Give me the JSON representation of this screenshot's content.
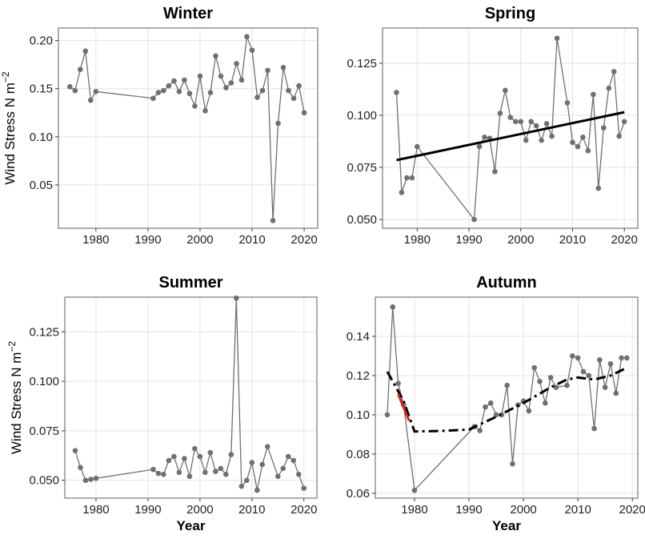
{
  "chart_data": [
    {
      "type": "line",
      "title": "Winter",
      "y_label": "Wind Stress N m",
      "y_label_sup": "−2",
      "xlim": [
        1972.8,
        2022.6
      ],
      "ylim": [
        0.005,
        0.213
      ],
      "xticks": [
        1980,
        1990,
        2000,
        2010,
        2020
      ],
      "yticks": [
        {
          "value": 0.05,
          "label": "0.05"
        },
        {
          "value": 0.1,
          "label": "0.10"
        },
        {
          "value": 0.15,
          "label": "0.15"
        },
        {
          "value": 0.2,
          "label": "0.20"
        }
      ],
      "grid": true,
      "series": [
        {
          "color": "#707070",
          "markers": true,
          "x": [
            1975,
            1976,
            1977,
            1978,
            1979,
            1980,
            1991,
            1992,
            1993,
            1994,
            1995,
            1996,
            1997,
            1998,
            1999,
            2000,
            2001,
            2002,
            2003,
            2004,
            2005,
            2006,
            2007,
            2008,
            2009,
            2010,
            2011,
            2012,
            2013,
            2014,
            2015,
            2016,
            2017,
            2018,
            2019,
            2020
          ],
          "values": [
            0.152,
            0.148,
            0.17,
            0.189,
            0.138,
            0.147,
            0.14,
            0.146,
            0.148,
            0.153,
            0.158,
            0.147,
            0.159,
            0.145,
            0.132,
            0.163,
            0.127,
            0.146,
            0.184,
            0.163,
            0.151,
            0.156,
            0.176,
            0.159,
            0.204,
            0.19,
            0.141,
            0.148,
            0.169,
            0.013,
            0.114,
            0.172,
            0.148,
            0.14,
            0.153,
            0.125
          ]
        }
      ]
    },
    {
      "type": "line",
      "title": "Spring",
      "xlim": [
        1973.3,
        2022.6
      ],
      "ylim": [
        0.0458,
        0.1419
      ],
      "xticks": [
        1980,
        1990,
        2000,
        2010,
        2020
      ],
      "yticks": [
        {
          "value": 0.05,
          "label": "0.050"
        },
        {
          "value": 0.075,
          "label": "0.075"
        },
        {
          "value": 0.1,
          "label": "0.100"
        },
        {
          "value": 0.125,
          "label": "0.125"
        }
      ],
      "grid": true,
      "series": [
        {
          "color": "#707070",
          "markers": true,
          "x": [
            1976,
            1977,
            1978,
            1979,
            1980,
            1991,
            1992,
            1993,
            1994,
            1995,
            1996,
            1997,
            1998,
            1999,
            2000,
            2001,
            2002,
            2003,
            2004,
            2005,
            2006,
            2007,
            2009,
            2010,
            2011,
            2012,
            2013,
            2014,
            2015,
            2016,
            2017,
            2018,
            2019,
            2020
          ],
          "values": [
            0.111,
            0.063,
            0.07,
            0.07,
            0.085,
            0.05,
            0.085,
            0.0895,
            0.089,
            0.073,
            0.101,
            0.112,
            0.099,
            0.097,
            0.097,
            0.088,
            0.097,
            0.095,
            0.088,
            0.096,
            0.09,
            0.137,
            0.106,
            0.087,
            0.085,
            0.0895,
            0.083,
            0.11,
            0.065,
            0.094,
            0.113,
            0.121,
            0.09,
            0.097
          ]
        },
        {
          "color": "#000000",
          "markers": false,
          "width": 3,
          "x": [
            1976,
            2020
          ],
          "values": [
            0.0785,
            0.1015
          ]
        }
      ]
    },
    {
      "type": "line",
      "title": "Summer",
      "y_label": "Wind Stress N m",
      "y_label_sup": "−2",
      "x_label": "Year",
      "xlim": [
        1974.0,
        2022.5
      ],
      "ylim": [
        0.041,
        0.1425
      ],
      "xticks": [
        1980,
        1990,
        2000,
        2010,
        2020
      ],
      "yticks": [
        {
          "value": 0.05,
          "label": "0.050"
        },
        {
          "value": 0.075,
          "label": "0.075"
        },
        {
          "value": 0.1,
          "label": "0.100"
        },
        {
          "value": 0.125,
          "label": "0.125"
        }
      ],
      "grid": true,
      "series": [
        {
          "color": "#707070",
          "markers": true,
          "x": [
            1976,
            1977,
            1978,
            1979,
            1980,
            1991,
            1992,
            1993,
            1994,
            1995,
            1996,
            1997,
            1998,
            1999,
            2000,
            2001,
            2002,
            2003,
            2004,
            2005,
            2006,
            2007,
            2008,
            2009,
            2010,
            2011,
            2012,
            2013,
            2015,
            2016,
            2017,
            2018,
            2019,
            2020
          ],
          "values": [
            0.065,
            0.0565,
            0.05,
            0.0505,
            0.051,
            0.0555,
            0.0535,
            0.053,
            0.06,
            0.062,
            0.054,
            0.061,
            0.052,
            0.066,
            0.062,
            0.054,
            0.064,
            0.0545,
            0.056,
            0.053,
            0.063,
            0.142,
            0.047,
            0.05,
            0.059,
            0.045,
            0.058,
            0.067,
            0.052,
            0.056,
            0.062,
            0.06,
            0.053,
            0.046
          ]
        }
      ]
    },
    {
      "type": "line",
      "title": "Autumn",
      "x_label": "Year",
      "xlim": [
        1972.8,
        2021.0
      ],
      "ylim": [
        0.0575,
        0.16
      ],
      "xticks": [
        1980,
        1990,
        2000,
        2010,
        2020
      ],
      "yticks": [
        {
          "value": 0.06,
          "label": "0.06"
        },
        {
          "value": 0.08,
          "label": "0.08"
        },
        {
          "value": 0.1,
          "label": "0.10"
        },
        {
          "value": 0.12,
          "label": "0.12"
        },
        {
          "value": 0.14,
          "label": "0.14"
        }
      ],
      "grid": true,
      "series": [
        {
          "color": "#707070",
          "markers": true,
          "x": [
            1975,
            1976,
            1977,
            1978,
            1980,
            1991,
            1992,
            1993,
            1994,
            1995,
            1996,
            1997,
            1998,
            1999,
            2000,
            2001,
            2002,
            2003,
            2004,
            2005,
            2006,
            2008,
            2009,
            2010,
            2011,
            2012,
            2013,
            2014,
            2015,
            2016,
            2017,
            2018,
            2019
          ],
          "values": [
            0.1,
            0.155,
            0.116,
            0.105,
            0.0615,
            0.094,
            0.092,
            0.104,
            0.106,
            0.1,
            0.1,
            0.115,
            0.075,
            0.105,
            0.107,
            0.102,
            0.124,
            0.117,
            0.106,
            0.119,
            0.114,
            0.115,
            0.13,
            0.129,
            0.122,
            0.12,
            0.093,
            0.128,
            0.114,
            0.126,
            0.111,
            0.129,
            0.129
          ]
        },
        {
          "color": "#000000",
          "markers": false,
          "width": 3,
          "dash": "12,5,3,5",
          "x": [
            1975,
            1978,
            1980,
            1985,
            1990,
            1995,
            2000,
            2005,
            2008,
            2010,
            2013,
            2016,
            2019
          ],
          "values": [
            0.122,
            0.107,
            0.0915,
            0.0918,
            0.0925,
            0.099,
            0.106,
            0.114,
            0.118,
            0.119,
            0.118,
            0.12,
            0.124
          ]
        },
        {
          "color": "#d62020",
          "markers": false,
          "width": 3,
          "x": [
            1977,
            1979
          ],
          "values": [
            0.1105,
            0.097
          ]
        }
      ]
    }
  ]
}
